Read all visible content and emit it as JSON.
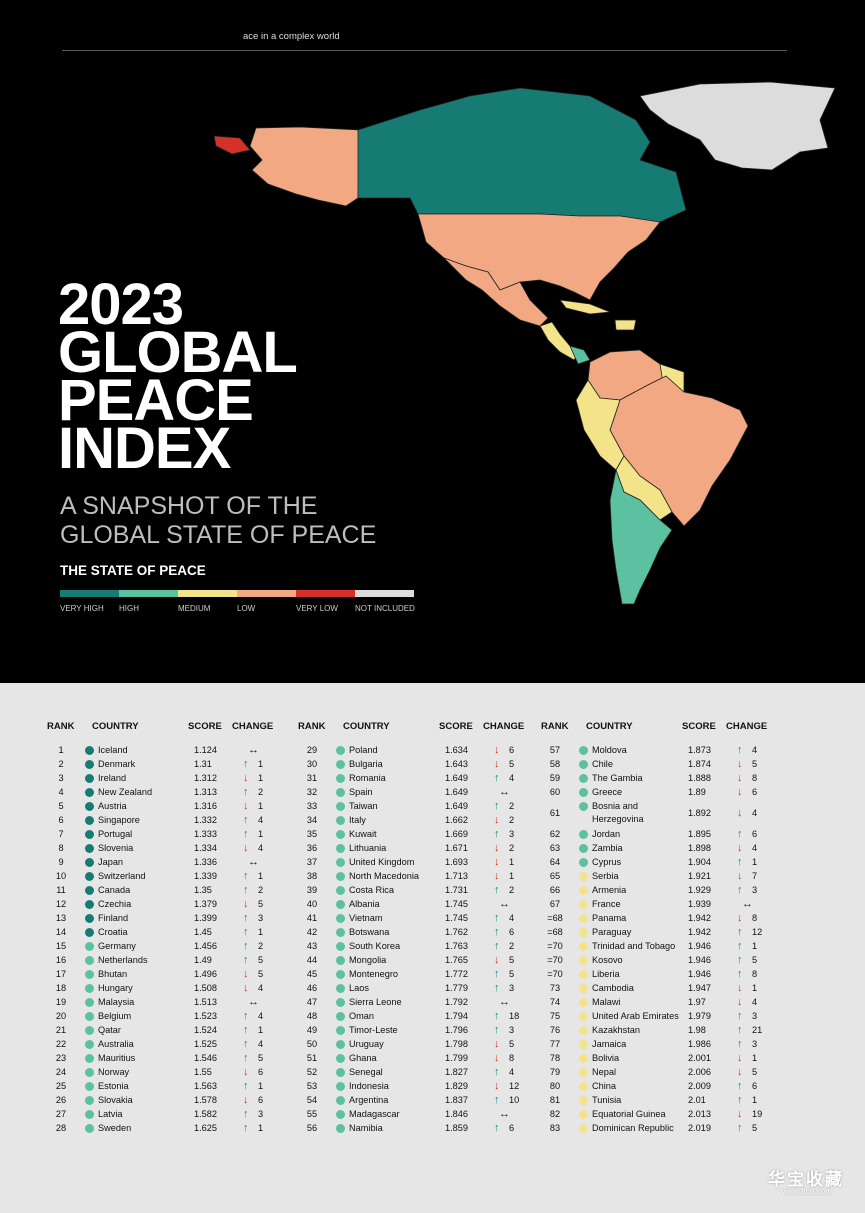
{
  "header": {
    "tagline": "ace in a complex world"
  },
  "title": {
    "line1": "2023",
    "line2": "GLOBAL",
    "line3": "PEACE",
    "line4": "INDEX"
  },
  "subtitle": {
    "line1": "A SNAPSHOT OF THE",
    "line2": "GLOBAL STATE OF PEACE"
  },
  "legend": {
    "title": "THE STATE OF PEACE",
    "items": [
      {
        "label": "VERY HIGH",
        "color": "#167c73"
      },
      {
        "label": "HIGH",
        "color": "#5bc1a0"
      },
      {
        "label": "MEDIUM",
        "color": "#f3e48a"
      },
      {
        "label": "LOW",
        "color": "#f2a883"
      },
      {
        "label": "VERY LOW",
        "color": "#d3312a"
      },
      {
        "label": "NOT INCLUDED",
        "color": "#dcdcdc"
      }
    ]
  },
  "table_headers": {
    "rank": "RANK",
    "country": "COUNTRY",
    "score": "SCORE",
    "change": "CHANGE"
  },
  "columns": [
    [
      {
        "rank": "1",
        "country": "Iceland",
        "score": "1.124",
        "dir": "same",
        "change": "",
        "level": "very_high"
      },
      {
        "rank": "2",
        "country": "Denmark",
        "score": "1.31",
        "dir": "up",
        "change": "1",
        "level": "very_high"
      },
      {
        "rank": "3",
        "country": "Ireland",
        "score": "1.312",
        "dir": "down",
        "change": "1",
        "level": "very_high"
      },
      {
        "rank": "4",
        "country": "New Zealand",
        "score": "1.313",
        "dir": "up",
        "change": "2",
        "level": "very_high"
      },
      {
        "rank": "5",
        "country": "Austria",
        "score": "1.316",
        "dir": "down",
        "change": "1",
        "level": "very_high"
      },
      {
        "rank": "6",
        "country": "Singapore",
        "score": "1.332",
        "dir": "up",
        "change": "4",
        "level": "very_high"
      },
      {
        "rank": "7",
        "country": "Portugal",
        "score": "1.333",
        "dir": "up",
        "change": "1",
        "level": "very_high"
      },
      {
        "rank": "8",
        "country": "Slovenia",
        "score": "1.334",
        "dir": "down",
        "change": "4",
        "level": "very_high"
      },
      {
        "rank": "9",
        "country": "Japan",
        "score": "1.336",
        "dir": "same",
        "change": "",
        "level": "very_high"
      },
      {
        "rank": "10",
        "country": "Switzerland",
        "score": "1.339",
        "dir": "up",
        "change": "1",
        "level": "very_high"
      },
      {
        "rank": "11",
        "country": "Canada",
        "score": "1.35",
        "dir": "up",
        "change": "2",
        "level": "very_high"
      },
      {
        "rank": "12",
        "country": "Czechia",
        "score": "1.379",
        "dir": "down",
        "change": "5",
        "level": "very_high"
      },
      {
        "rank": "13",
        "country": "Finland",
        "score": "1.399",
        "dir": "up",
        "change": "3",
        "level": "very_high"
      },
      {
        "rank": "14",
        "country": "Croatia",
        "score": "1.45",
        "dir": "up",
        "change": "1",
        "level": "very_high"
      },
      {
        "rank": "15",
        "country": "Germany",
        "score": "1.456",
        "dir": "up",
        "change": "2",
        "level": "high"
      },
      {
        "rank": "16",
        "country": "Netherlands",
        "score": "1.49",
        "dir": "up",
        "change": "5",
        "level": "high"
      },
      {
        "rank": "17",
        "country": "Bhutan",
        "score": "1.496",
        "dir": "down",
        "change": "5",
        "level": "high"
      },
      {
        "rank": "18",
        "country": "Hungary",
        "score": "1.508",
        "dir": "down",
        "change": "4",
        "level": "high"
      },
      {
        "rank": "19",
        "country": "Malaysia",
        "score": "1.513",
        "dir": "same",
        "change": "",
        "level": "high"
      },
      {
        "rank": "20",
        "country": "Belgium",
        "score": "1.523",
        "dir": "up",
        "change": "4",
        "level": "high"
      },
      {
        "rank": "21",
        "country": "Qatar",
        "score": "1.524",
        "dir": "up",
        "change": "1",
        "level": "high"
      },
      {
        "rank": "22",
        "country": "Australia",
        "score": "1.525",
        "dir": "up",
        "change": "4",
        "level": "high"
      },
      {
        "rank": "23",
        "country": "Mauritius",
        "score": "1.546",
        "dir": "up",
        "change": "5",
        "level": "high"
      },
      {
        "rank": "24",
        "country": "Norway",
        "score": "1.55",
        "dir": "down",
        "change": "6",
        "level": "high"
      },
      {
        "rank": "25",
        "country": "Estonia",
        "score": "1.563",
        "dir": "up",
        "change": "1",
        "level": "high"
      },
      {
        "rank": "26",
        "country": "Slovakia",
        "score": "1.578",
        "dir": "down",
        "change": "6",
        "level": "high"
      },
      {
        "rank": "27",
        "country": "Latvia",
        "score": "1.582",
        "dir": "up",
        "change": "3",
        "level": "high"
      },
      {
        "rank": "28",
        "country": "Sweden",
        "score": "1.625",
        "dir": "up",
        "change": "1",
        "level": "high"
      }
    ],
    [
      {
        "rank": "29",
        "country": "Poland",
        "score": "1.634",
        "dir": "down",
        "change": "6",
        "level": "high"
      },
      {
        "rank": "30",
        "country": "Bulgaria",
        "score": "1.643",
        "dir": "down",
        "change": "5",
        "level": "high"
      },
      {
        "rank": "31",
        "country": "Romania",
        "score": "1.649",
        "dir": "up",
        "change": "4",
        "level": "high"
      },
      {
        "rank": "32",
        "country": "Spain",
        "score": "1.649",
        "dir": "same",
        "change": "",
        "level": "high"
      },
      {
        "rank": "33",
        "country": "Taiwan",
        "score": "1.649",
        "dir": "up",
        "change": "2",
        "level": "high"
      },
      {
        "rank": "34",
        "country": "Italy",
        "score": "1.662",
        "dir": "down",
        "change": "2",
        "level": "high"
      },
      {
        "rank": "35",
        "country": "Kuwait",
        "score": "1.669",
        "dir": "up",
        "change": "3",
        "level": "high"
      },
      {
        "rank": "36",
        "country": "Lithuania",
        "score": "1.671",
        "dir": "down",
        "change": "2",
        "level": "high"
      },
      {
        "rank": "37",
        "country": "United Kingdom",
        "score": "1.693",
        "dir": "down",
        "change": "1",
        "level": "high"
      },
      {
        "rank": "38",
        "country": "North Macedonia",
        "score": "1.713",
        "dir": "down",
        "change": "1",
        "level": "high"
      },
      {
        "rank": "39",
        "country": "Costa Rica",
        "score": "1.731",
        "dir": "up",
        "change": "2",
        "level": "high"
      },
      {
        "rank": "40",
        "country": "Albania",
        "score": "1.745",
        "dir": "same",
        "change": "",
        "level": "high"
      },
      {
        "rank": "41",
        "country": "Vietnam",
        "score": "1.745",
        "dir": "up",
        "change": "4",
        "level": "high"
      },
      {
        "rank": "42",
        "country": "Botswana",
        "score": "1.762",
        "dir": "up",
        "change": "6",
        "level": "high"
      },
      {
        "rank": "43",
        "country": "South Korea",
        "score": "1.763",
        "dir": "up",
        "change": "2",
        "level": "high"
      },
      {
        "rank": "44",
        "country": "Mongolia",
        "score": "1.765",
        "dir": "down",
        "change": "5",
        "level": "high"
      },
      {
        "rank": "45",
        "country": "Montenegro",
        "score": "1.772",
        "dir": "up",
        "change": "5",
        "level": "high"
      },
      {
        "rank": "46",
        "country": "Laos",
        "score": "1.779",
        "dir": "up",
        "change": "3",
        "level": "high"
      },
      {
        "rank": "47",
        "country": "Sierra Leone",
        "score": "1.792",
        "dir": "same",
        "change": "",
        "level": "high"
      },
      {
        "rank": "48",
        "country": "Oman",
        "score": "1.794",
        "dir": "up",
        "change": "18",
        "level": "high"
      },
      {
        "rank": "49",
        "country": "Timor-Leste",
        "score": "1.796",
        "dir": "up",
        "change": "3",
        "level": "high"
      },
      {
        "rank": "50",
        "country": "Uruguay",
        "score": "1.798",
        "dir": "down",
        "change": "5",
        "level": "high"
      },
      {
        "rank": "51",
        "country": "Ghana",
        "score": "1.799",
        "dir": "down",
        "change": "8",
        "level": "high"
      },
      {
        "rank": "52",
        "country": "Senegal",
        "score": "1.827",
        "dir": "up",
        "change": "4",
        "level": "high"
      },
      {
        "rank": "53",
        "country": "Indonesia",
        "score": "1.829",
        "dir": "down",
        "change": "12",
        "level": "high"
      },
      {
        "rank": "54",
        "country": "Argentina",
        "score": "1.837",
        "dir": "up",
        "change": "10",
        "level": "high"
      },
      {
        "rank": "55",
        "country": "Madagascar",
        "score": "1.846",
        "dir": "same",
        "change": "",
        "level": "high"
      },
      {
        "rank": "56",
        "country": "Namibia",
        "score": "1.859",
        "dir": "up",
        "change": "6",
        "level": "high"
      }
    ],
    [
      {
        "rank": "57",
        "country": "Moldova",
        "score": "1.873",
        "dir": "up",
        "change": "4",
        "level": "high"
      },
      {
        "rank": "58",
        "country": "Chile",
        "score": "1.874",
        "dir": "down",
        "change": "5",
        "level": "high"
      },
      {
        "rank": "59",
        "country": "The Gambia",
        "score": "1.888",
        "dir": "down",
        "change": "8",
        "level": "high"
      },
      {
        "rank": "60",
        "country": "Greece",
        "score": "1.89",
        "dir": "down",
        "change": "6",
        "level": "high"
      },
      {
        "rank": "61",
        "country": "Bosnia and",
        "country2": "Herzegovina",
        "score": "1.892",
        "dir": "down",
        "change": "4",
        "level": "high",
        "double": true
      },
      {
        "rank": "62",
        "country": "Jordan",
        "score": "1.895",
        "dir": "up",
        "change": "6",
        "level": "high"
      },
      {
        "rank": "63",
        "country": "Zambia",
        "score": "1.898",
        "dir": "down",
        "change": "4",
        "level": "high"
      },
      {
        "rank": "64",
        "country": "Cyprus",
        "score": "1.904",
        "dir": "up",
        "change": "1",
        "level": "high"
      },
      {
        "rank": "65",
        "country": "Serbia",
        "score": "1.921",
        "dir": "down",
        "change": "7",
        "level": "medium"
      },
      {
        "rank": "66",
        "country": "Armenia",
        "score": "1.929",
        "dir": "up",
        "change": "3",
        "level": "medium"
      },
      {
        "rank": "67",
        "country": "France",
        "score": "1.939",
        "dir": "same",
        "change": "",
        "level": "medium"
      },
      {
        "rank": "=68",
        "country": "Panama",
        "score": "1.942",
        "dir": "down",
        "change": "8",
        "level": "medium"
      },
      {
        "rank": "=68",
        "country": "Paraguay",
        "score": "1.942",
        "dir": "up",
        "change": "12",
        "level": "medium"
      },
      {
        "rank": "=70",
        "country": "Trinidad and Tobago",
        "score": "1.946",
        "dir": "up",
        "change": "1",
        "level": "medium"
      },
      {
        "rank": "=70",
        "country": "Kosovo",
        "score": "1.946",
        "dir": "up",
        "change": "5",
        "level": "medium"
      },
      {
        "rank": "=70",
        "country": "Liberia",
        "score": "1.946",
        "dir": "up",
        "change": "8",
        "level": "medium"
      },
      {
        "rank": "73",
        "country": "Cambodia",
        "score": "1.947",
        "dir": "down",
        "change": "1",
        "level": "medium"
      },
      {
        "rank": "74",
        "country": "Malawi",
        "score": "1.97",
        "dir": "down",
        "change": "4",
        "level": "medium"
      },
      {
        "rank": "75",
        "country": "United Arab Emirates",
        "score": "1.979",
        "dir": "up",
        "change": "3",
        "level": "medium"
      },
      {
        "rank": "76",
        "country": "Kazakhstan",
        "score": "1.98",
        "dir": "up",
        "change": "21",
        "level": "medium"
      },
      {
        "rank": "77",
        "country": "Jamaica",
        "score": "1.986",
        "dir": "up",
        "change": "3",
        "level": "medium"
      },
      {
        "rank": "78",
        "country": "Bolivia",
        "score": "2.001",
        "dir": "down",
        "change": "1",
        "level": "medium"
      },
      {
        "rank": "79",
        "country": "Nepal",
        "score": "2.006",
        "dir": "down",
        "change": "5",
        "level": "medium"
      },
      {
        "rank": "80",
        "country": "China",
        "score": "2.009",
        "dir": "up",
        "change": "6",
        "level": "medium"
      },
      {
        "rank": "81",
        "country": "Tunisia",
        "score": "2.01",
        "dir": "up",
        "change": "1",
        "level": "medium"
      },
      {
        "rank": "82",
        "country": "Equatorial Guinea",
        "score": "2.013",
        "dir": "down",
        "change": "19",
        "level": "medium"
      },
      {
        "rank": "83",
        "country": "Dominican Republic",
        "score": "2.019",
        "dir": "up",
        "change": "5",
        "level": "medium"
      }
    ]
  ],
  "level_colors": {
    "very_high": "#167c73",
    "high": "#5bc1a0",
    "medium": "#f3e48a"
  },
  "watermark": {
    "text": "华宝收藏",
    "url": "www.hb8.com"
  }
}
